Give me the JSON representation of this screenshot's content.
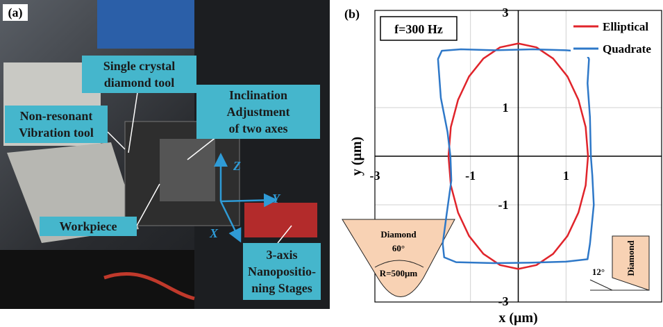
{
  "chart_data": {
    "type": "line",
    "panel_label": "(b)",
    "x_label": "x (μm)",
    "y_label": "y (μm)",
    "annotation": "f=300 Hz",
    "inset_left": {
      "title": "Diamond",
      "angle": "60°",
      "radius": "R=500μm"
    },
    "inset_right": {
      "title": "Diamond",
      "angle": "12°"
    },
    "xlim": [
      -3,
      3
    ],
    "ylim": [
      -3,
      3
    ],
    "xticks": [
      -3,
      -1,
      1
    ],
    "yticks": [
      -3,
      -1,
      1,
      3
    ],
    "grid": true,
    "legend": "top-right",
    "series": [
      {
        "name": "Elliptical",
        "color": "#e0242b",
        "x": [
          1.46,
          1.41,
          1.26,
          1.03,
          0.73,
          0.38,
          0,
          -0.38,
          -0.73,
          -1.03,
          -1.26,
          -1.41,
          -1.46,
          -1.41,
          -1.26,
          -1.03,
          -0.73,
          -0.38,
          0,
          0.38,
          0.73,
          1.03,
          1.26,
          1.41,
          1.46
        ],
        "y": [
          0,
          0.6,
          1.16,
          1.64,
          2.01,
          2.24,
          2.32,
          2.24,
          2.01,
          1.64,
          1.16,
          0.6,
          0,
          -0.6,
          -1.16,
          -1.64,
          -2.01,
          -2.24,
          -2.32,
          -2.24,
          -2.01,
          -1.64,
          -1.16,
          -0.6,
          0
        ]
      },
      {
        "name": "Quadrate",
        "color": "#2e78c8",
        "x": [
          1.52,
          1.5,
          1.45,
          1.48,
          1.4,
          1.0,
          0.3,
          -0.5,
          -1.2,
          -1.6,
          -1.68,
          -1.62,
          -1.48,
          -1.42,
          -1.4,
          -1.5,
          -1.58,
          -1.55,
          -1.3,
          -0.5,
          0.3,
          1.0,
          1.45,
          1.5,
          1.58,
          1.55,
          1.52
        ],
        "y": [
          0,
          0.8,
          1.5,
          2.0,
          2.15,
          2.18,
          2.2,
          2.18,
          2.2,
          2.17,
          2.0,
          1.2,
          0.5,
          0,
          -0.5,
          -1.2,
          -1.8,
          -2.08,
          -2.18,
          -2.2,
          -2.19,
          -2.17,
          -2.12,
          -1.8,
          -1.0,
          -0.4,
          0
        ]
      }
    ]
  },
  "photo_panel": {
    "label": "(a)",
    "callouts": [
      {
        "lines": [
          "Single crystal",
          "diamond tool"
        ]
      },
      {
        "lines": [
          "Inclination",
          "Adjustment",
          "of two axes"
        ]
      },
      {
        "lines": [
          "Non-resonant",
          "Vibration tool"
        ]
      },
      {
        "lines": [
          "Workpiece"
        ]
      },
      {
        "lines": [
          "3-axis",
          "Nanopositio-",
          "ning Stages"
        ]
      }
    ],
    "axes": [
      "Z",
      "Y",
      "X"
    ]
  }
}
